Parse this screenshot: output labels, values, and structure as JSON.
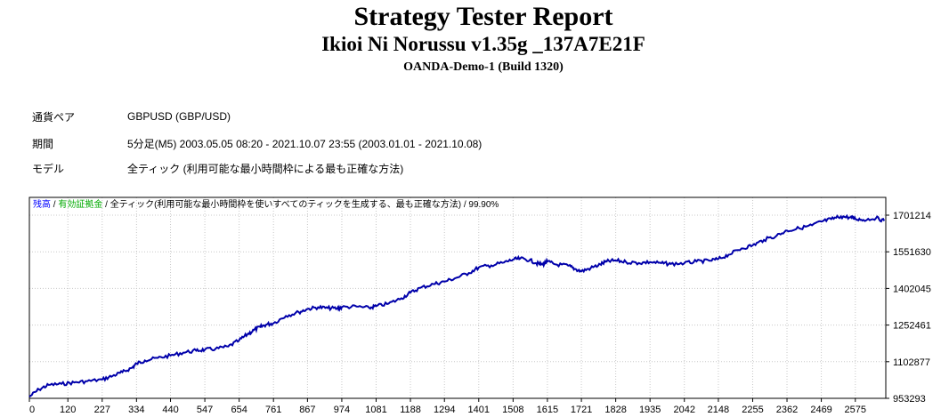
{
  "report": {
    "title": "Strategy Tester Report",
    "ea_name": "Ikioi Ni Norussu v1.35g _137A7E21F",
    "server": "OANDA-Demo-1 (Build 1320)"
  },
  "info": [
    {
      "label": "通貨ペア",
      "value": "GBPUSD (GBP/USD)"
    },
    {
      "label": "期間",
      "value": "5分足(M5) 2003.05.05 08:20 - 2021.10.07 23:55 (2003.01.01 - 2021.10.08)"
    },
    {
      "label": "モデル",
      "value": "全ティック (利用可能な最小時間枠による最も正確な方法)"
    }
  ],
  "colors": {
    "balance_line": "#0000aa",
    "legend_balance": "#0000ff",
    "legend_equity": "#00aa00",
    "axis": "#000000",
    "grid": "#c8c8c8"
  },
  "chart_data": {
    "type": "line",
    "legend": {
      "balance": "残高",
      "sep1": " / ",
      "equity": "有効証拠金",
      "sep2": " / ",
      "model": "全ティック(利用可能な最小時間枠を使いすべてのティックを生成する、最も正確な方法)",
      "sep3": " / ",
      "quality": "99.90%"
    },
    "x_ticks": [
      0,
      120,
      227,
      334,
      440,
      547,
      654,
      761,
      867,
      974,
      1081,
      1188,
      1294,
      1401,
      1508,
      1615,
      1721,
      1828,
      1935,
      2042,
      2148,
      2255,
      2362,
      2469,
      2575
    ],
    "y_ticks": [
      953293,
      1102877,
      1252461,
      1402045,
      1551630,
      1701214
    ],
    "xlim": [
      0,
      2670
    ],
    "ylim": [
      953293,
      1701214
    ],
    "series": [
      {
        "values_x": [
          0,
          30,
          60,
          100,
          140,
          180,
          227,
          260,
          290,
          320,
          334,
          360,
          400,
          440,
          480,
          520,
          547,
          580,
          620,
          654,
          680,
          700,
          720,
          740,
          761,
          800,
          840,
          867,
          900,
          930,
          960,
          974,
          1020,
          1060,
          1081,
          1120,
          1160,
          1188,
          1220,
          1260,
          1294,
          1330,
          1370,
          1401,
          1440,
          1480,
          1508,
          1530,
          1560,
          1580,
          1600,
          1615,
          1640,
          1680,
          1700,
          1721,
          1750,
          1780,
          1800,
          1828,
          1860,
          1900,
          1935,
          1970,
          2000,
          2042,
          2080,
          2120,
          2148,
          2180,
          2220,
          2255,
          2290,
          2330,
          2362,
          2400,
          2440,
          2469,
          2500,
          2530,
          2560,
          2575,
          2600,
          2640,
          2665
        ],
        "values_y": [
          960000,
          990000,
          1008000,
          1012000,
          1018000,
          1023000,
          1030000,
          1045000,
          1060000,
          1078000,
          1095000,
          1108000,
          1118000,
          1128000,
          1140000,
          1148000,
          1152000,
          1155000,
          1165000,
          1190000,
          1215000,
          1232000,
          1245000,
          1255000,
          1260000,
          1290000,
          1305000,
          1318000,
          1325000,
          1322000,
          1320000,
          1325000,
          1328000,
          1322000,
          1330000,
          1340000,
          1362000,
          1385000,
          1405000,
          1420000,
          1430000,
          1445000,
          1465000,
          1488000,
          1496000,
          1508000,
          1520000,
          1524000,
          1518000,
          1505000,
          1500000,
          1512000,
          1500000,
          1495000,
          1482000,
          1472000,
          1485000,
          1500000,
          1512000,
          1516000,
          1510000,
          1506000,
          1510000,
          1505000,
          1502000,
          1505000,
          1512000,
          1515000,
          1522000,
          1540000,
          1565000,
          1578000,
          1600000,
          1618000,
          1638000,
          1648000,
          1660000,
          1675000,
          1685000,
          1696000,
          1692000,
          1687000,
          1682000,
          1690000,
          1678000
        ]
      }
    ]
  }
}
